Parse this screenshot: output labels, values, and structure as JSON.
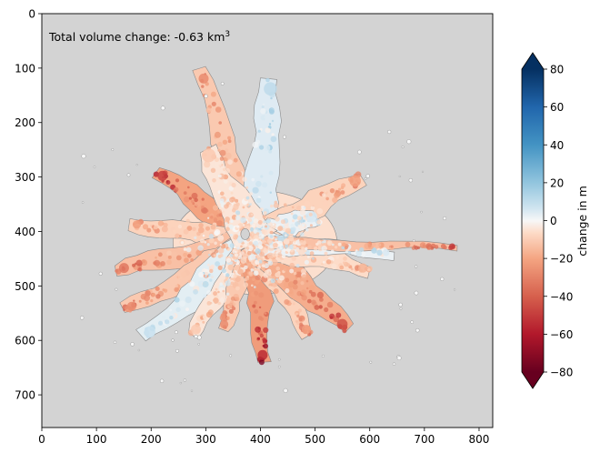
{
  "chart_data": {
    "type": "heatmap",
    "title": "",
    "annotation": {
      "text": "Total volume change: -0.63 km",
      "superscript": "3"
    },
    "xlim": [
      0,
      825
    ],
    "ylim": [
      760,
      0
    ],
    "x_ticks": [
      0,
      100,
      200,
      300,
      400,
      500,
      600,
      700,
      800
    ],
    "y_ticks": [
      0,
      100,
      200,
      300,
      400,
      500,
      600,
      700
    ],
    "background_color": "#d3d3d3",
    "colormap": "RdBu",
    "colorbar": {
      "label": "change in m",
      "range": [
        -80,
        80
      ],
      "ticks": [
        80,
        60,
        40,
        20,
        0,
        -20,
        -40,
        -60,
        -80
      ],
      "tick_labels": [
        "80",
        "60",
        "40",
        "20",
        "0",
        "−20",
        "−40",
        "−60",
        "−80"
      ],
      "extend": "both"
    },
    "glacier_center": [
      390,
      420
    ],
    "glacier_arms": [
      {
        "tip": [
          290,
          100
        ],
        "width": 26,
        "value": -25
      },
      {
        "tip": [
          420,
          120
        ],
        "width": 34,
        "value": 10
      },
      {
        "tip": [
          585,
          300
        ],
        "width": 30,
        "value": -20
      },
      {
        "tip": [
          500,
          370
        ],
        "width": 30,
        "value": 5
      },
      {
        "tip": [
          210,
          290
        ],
        "width": 26,
        "value": -45
      },
      {
        "tip": [
          160,
          385
        ],
        "width": 22,
        "value": -20
      },
      {
        "tip": [
          135,
          470
        ],
        "width": 26,
        "value": -30
      },
      {
        "tip": [
          150,
          545
        ],
        "width": 24,
        "value": -25
      },
      {
        "tip": [
          185,
          595
        ],
        "width": 30,
        "value": 8
      },
      {
        "tip": [
          275,
          590
        ],
        "width": 26,
        "value": -10
      },
      {
        "tip": [
          330,
          580
        ],
        "width": 22,
        "value": -25
      },
      {
        "tip": [
          405,
          640
        ],
        "width": 26,
        "value": -50
      },
      {
        "tip": [
          490,
          590
        ],
        "width": 24,
        "value": -20
      },
      {
        "tip": [
          560,
          580
        ],
        "width": 28,
        "value": -40
      },
      {
        "tip": [
          600,
          470
        ],
        "width": 24,
        "value": -15
      },
      {
        "tip": [
          645,
          440
        ],
        "width": 18,
        "value": 5
      },
      {
        "tip": [
          760,
          430
        ],
        "width": 10,
        "value": -30
      },
      {
        "tip": [
          300,
          250
        ],
        "width": 36,
        "value": -10
      }
    ]
  }
}
